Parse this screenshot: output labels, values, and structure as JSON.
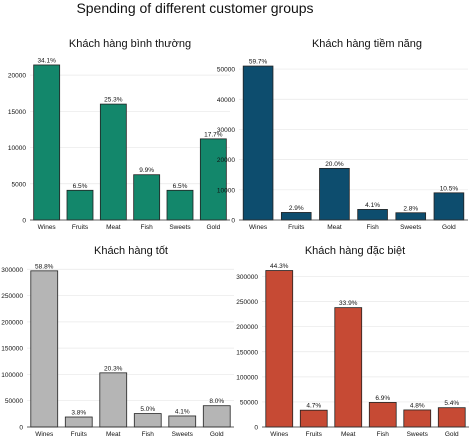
{
  "figure_title": "Spending of different customer groups",
  "colors": {
    "bar_edge": "#222222",
    "grid": "#e8e8e8",
    "axis": "#333333",
    "text": "#111111"
  },
  "chart_data": [
    {
      "type": "bar",
      "title": "Khách hàng bình thường",
      "categories": [
        "Wines",
        "Fruits",
        "Meat",
        "Fish",
        "Sweets",
        "Gold"
      ],
      "values": [
        21400,
        4100,
        16000,
        6250,
        4100,
        11200
      ],
      "labels": [
        "34.1%",
        "6.5%",
        "25.3%",
        "9.9%",
        "6.5%",
        "17.7%"
      ],
      "yticks": [
        0,
        5000,
        10000,
        15000,
        20000
      ],
      "ylim": [
        0,
        22500
      ],
      "color": "#13876b",
      "xlabel": "",
      "ylabel": ""
    },
    {
      "type": "bar",
      "title": "Khách hàng tiềm năng",
      "categories": [
        "Wines",
        "Fruits",
        "Meat",
        "Fish",
        "Sweets",
        "Gold"
      ],
      "values": [
        51000,
        2500,
        17100,
        3500,
        2400,
        9000
      ],
      "labels": [
        "59.7%",
        "2.9%",
        "20.0%",
        "4.1%",
        "2.8%",
        "10.5%"
      ],
      "yticks": [
        0,
        10000,
        20000,
        30000,
        40000,
        50000
      ],
      "ylim": [
        0,
        54000
      ],
      "color": "#0d4d6e",
      "xlabel": "",
      "ylabel": ""
    },
    {
      "type": "bar",
      "title": "Khách hàng tốt",
      "categories": [
        "Wines",
        "Fruits",
        "Meat",
        "Fish",
        "Sweets",
        "Gold"
      ],
      "values": [
        297000,
        19000,
        103000,
        25500,
        21000,
        40500
      ],
      "labels": [
        "58.8%",
        "3.8%",
        "20.3%",
        "5.0%",
        "4.1%",
        "8.0%"
      ],
      "yticks": [
        0,
        50000,
        100000,
        150000,
        200000,
        250000,
        300000
      ],
      "ylim": [
        0,
        310000
      ],
      "color": "#b5b5b5",
      "xlabel": "",
      "ylabel": ""
    },
    {
      "type": "bar",
      "title": "Khách hàng đặc biệt",
      "categories": [
        "Wines",
        "Fruits",
        "Meat",
        "Fish",
        "Sweets",
        "Gold"
      ],
      "values": [
        312000,
        33500,
        238000,
        49000,
        34000,
        38500
      ],
      "labels": [
        "44.3%",
        "4.7%",
        "33.9%",
        "6.9%",
        "4.8%",
        "5.4%"
      ],
      "yticks": [
        0,
        50000,
        100000,
        150000,
        200000,
        250000,
        300000
      ],
      "ylim": [
        0,
        325000
      ],
      "color": "#c64a34",
      "xlabel": "",
      "ylabel": ""
    }
  ]
}
